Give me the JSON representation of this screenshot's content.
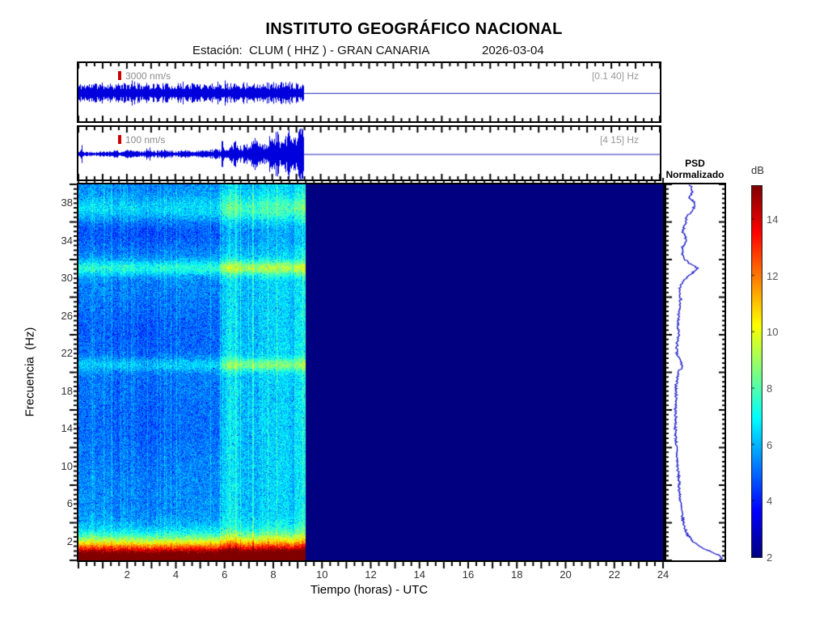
{
  "header": {
    "title": "INSTITUTO GEOGRÁFICO NACIONAL",
    "station_line": "Estación:  CLUM ( HHZ ) - GRAN CANARIA",
    "date": "2026-03-04"
  },
  "axes": {
    "x_label": "Tiempo (horas) - UTC",
    "y_label": "Frecuencia  (Hz)",
    "x_ticks": [
      2,
      4,
      6,
      8,
      10,
      12,
      14,
      16,
      18,
      20,
      22,
      24
    ],
    "y_ticks": [
      2,
      6,
      10,
      14,
      18,
      22,
      26,
      30,
      34,
      38
    ],
    "x_range_hours": [
      0,
      24
    ],
    "y_range_hz": [
      0,
      40
    ]
  },
  "psd_panel": {
    "title_line1": "PSD",
    "title_line2": "Normalizado"
  },
  "colorbar": {
    "label": "dB",
    "ticks": [
      2,
      4,
      6,
      8,
      10,
      12,
      14
    ],
    "clim": [
      2,
      15.2
    ],
    "colormap": "jet"
  },
  "chart_data": [
    {
      "type": "line",
      "name": "broadband-seismogram",
      "scale_bar": "3000 nm/s",
      "bandpass": "[0.1 40] Hz",
      "color": "#0000dd",
      "flat_color": "#2525b8",
      "x_range_hours": [
        0,
        24
      ],
      "data_end_hours": 9.3,
      "scale_bar_nm_s": 3000,
      "envelope_nm_s": [
        [
          0,
          3000
        ],
        [
          1,
          3300
        ],
        [
          2,
          3100
        ],
        [
          3,
          3200
        ],
        [
          4,
          3000
        ],
        [
          5,
          3300
        ],
        [
          6,
          3100
        ],
        [
          7,
          3500
        ],
        [
          8,
          3400
        ],
        [
          8.7,
          3600
        ],
        [
          9.3,
          3200
        ]
      ]
    },
    {
      "type": "line",
      "name": "filtered-seismogram",
      "scale_bar": "100 nm/s",
      "bandpass": "[4 15] Hz",
      "color": "#0000dd",
      "flat_color": "#2525b8",
      "x_range_hours": [
        0,
        24
      ],
      "data_end_hours": 9.3,
      "scale_bar_nm_s": 100,
      "envelope_nm_s": [
        [
          0,
          25
        ],
        [
          0.12,
          80
        ],
        [
          0.25,
          25
        ],
        [
          1,
          30
        ],
        [
          1.4,
          45
        ],
        [
          1.8,
          30
        ],
        [
          2.1,
          50
        ],
        [
          2.5,
          30
        ],
        [
          2.9,
          60
        ],
        [
          3.2,
          35
        ],
        [
          3.5,
          50
        ],
        [
          4,
          35
        ],
        [
          4.4,
          45
        ],
        [
          4.8,
          30
        ],
        [
          5.3,
          45
        ],
        [
          5.7,
          55
        ],
        [
          5.88,
          60
        ],
        [
          5.93,
          250
        ],
        [
          6,
          90
        ],
        [
          6.2,
          80
        ],
        [
          6.5,
          140
        ],
        [
          6.7,
          90
        ],
        [
          7,
          120
        ],
        [
          7.2,
          160
        ],
        [
          7.35,
          250
        ],
        [
          7.5,
          140
        ],
        [
          7.7,
          120
        ],
        [
          7.95,
          220
        ],
        [
          8.15,
          280
        ],
        [
          8.3,
          160
        ],
        [
          8.45,
          120
        ],
        [
          8.6,
          260
        ],
        [
          8.75,
          280
        ],
        [
          8.9,
          180
        ],
        [
          9,
          200
        ],
        [
          9.1,
          300
        ],
        [
          9.2,
          380
        ],
        [
          9.27,
          300
        ],
        [
          9.3,
          120
        ]
      ]
    },
    {
      "type": "heatmap",
      "name": "spectrogram",
      "x_range_hours": [
        0,
        24
      ],
      "y_range_hz": [
        0,
        40
      ],
      "clim_db": [
        2,
        15.2
      ],
      "colormap": "jet",
      "data_end_hours": 9.3,
      "no_data_db": 2,
      "base_db": {
        "early": 5.35,
        "late": 6.2,
        "transition_hours": 5.7
      },
      "bands": [
        {
          "center_hz": 37.4,
          "sigma_hz": 0.9,
          "gain_early_db": 1.1,
          "gain_late_db": 1.6
        },
        {
          "center_hz": 31.1,
          "sigma_hz": 0.55,
          "gain_early_db": 1.9,
          "gain_late_db": 2.8
        },
        {
          "center_hz": 20.8,
          "sigma_hz": 0.5,
          "gain_early_db": 1.2,
          "gain_late_db": 2.2
        },
        {
          "center_hz": 34.8,
          "sigma_hz": 1.2,
          "gain_early_db": -0.75,
          "gain_late_db": -0.6
        },
        {
          "center_hz": 24.5,
          "sigma_hz": 2.5,
          "gain_early_db": -0.55,
          "gain_late_db": 0
        },
        {
          "center_hz": 15.0,
          "sigma_hz": 4.0,
          "gain_early_db": -0.45,
          "gain_late_db": 0
        }
      ],
      "microseism": {
        "amp_db": 13,
        "scale_hz": 1.9,
        "exponent": 1.6
      },
      "bright_intervals_hours": [
        [
          6.05,
          6.55,
          0.5
        ],
        [
          7.4,
          8.6,
          0.35
        ],
        [
          8.85,
          9.3,
          0.5
        ]
      ],
      "noise_db": 1.9,
      "seed": 20260304
    },
    {
      "type": "line",
      "name": "psd-normalized",
      "orientation": "vertical",
      "color": "#1212c8",
      "profile_freq_frac": [
        [
          40,
          0.42
        ],
        [
          39.2,
          0.46
        ],
        [
          38.6,
          0.4
        ],
        [
          38,
          0.52
        ],
        [
          37.4,
          0.47
        ],
        [
          36.6,
          0.36
        ],
        [
          35.8,
          0.32
        ],
        [
          35,
          0.28
        ],
        [
          34.2,
          0.34
        ],
        [
          33.4,
          0.28
        ],
        [
          32.6,
          0.26
        ],
        [
          31.8,
          0.36
        ],
        [
          31.1,
          0.55
        ],
        [
          30.4,
          0.42
        ],
        [
          29.8,
          0.28
        ],
        [
          29,
          0.22
        ],
        [
          28,
          0.24
        ],
        [
          27,
          0.22
        ],
        [
          26,
          0.2
        ],
        [
          25,
          0.18
        ],
        [
          24,
          0.2
        ],
        [
          23,
          0.17
        ],
        [
          22,
          0.16
        ],
        [
          21.2,
          0.24
        ],
        [
          20.6,
          0.27
        ],
        [
          20,
          0.19
        ],
        [
          19,
          0.16
        ],
        [
          18,
          0.15
        ],
        [
          17,
          0.16
        ],
        [
          16,
          0.14
        ],
        [
          15,
          0.15
        ],
        [
          14,
          0.14
        ],
        [
          13,
          0.15
        ],
        [
          12,
          0.16
        ],
        [
          11,
          0.17
        ],
        [
          10,
          0.18
        ],
        [
          9,
          0.2
        ],
        [
          8,
          0.21
        ],
        [
          7,
          0.22
        ],
        [
          6,
          0.24
        ],
        [
          5,
          0.26
        ],
        [
          4,
          0.29
        ],
        [
          3.2,
          0.33
        ],
        [
          2.6,
          0.38
        ],
        [
          2,
          0.46
        ],
        [
          1.5,
          0.58
        ],
        [
          1.1,
          0.72
        ],
        [
          0.8,
          0.85
        ],
        [
          0.5,
          0.95
        ],
        [
          0.2,
          1.0
        ]
      ]
    }
  ]
}
